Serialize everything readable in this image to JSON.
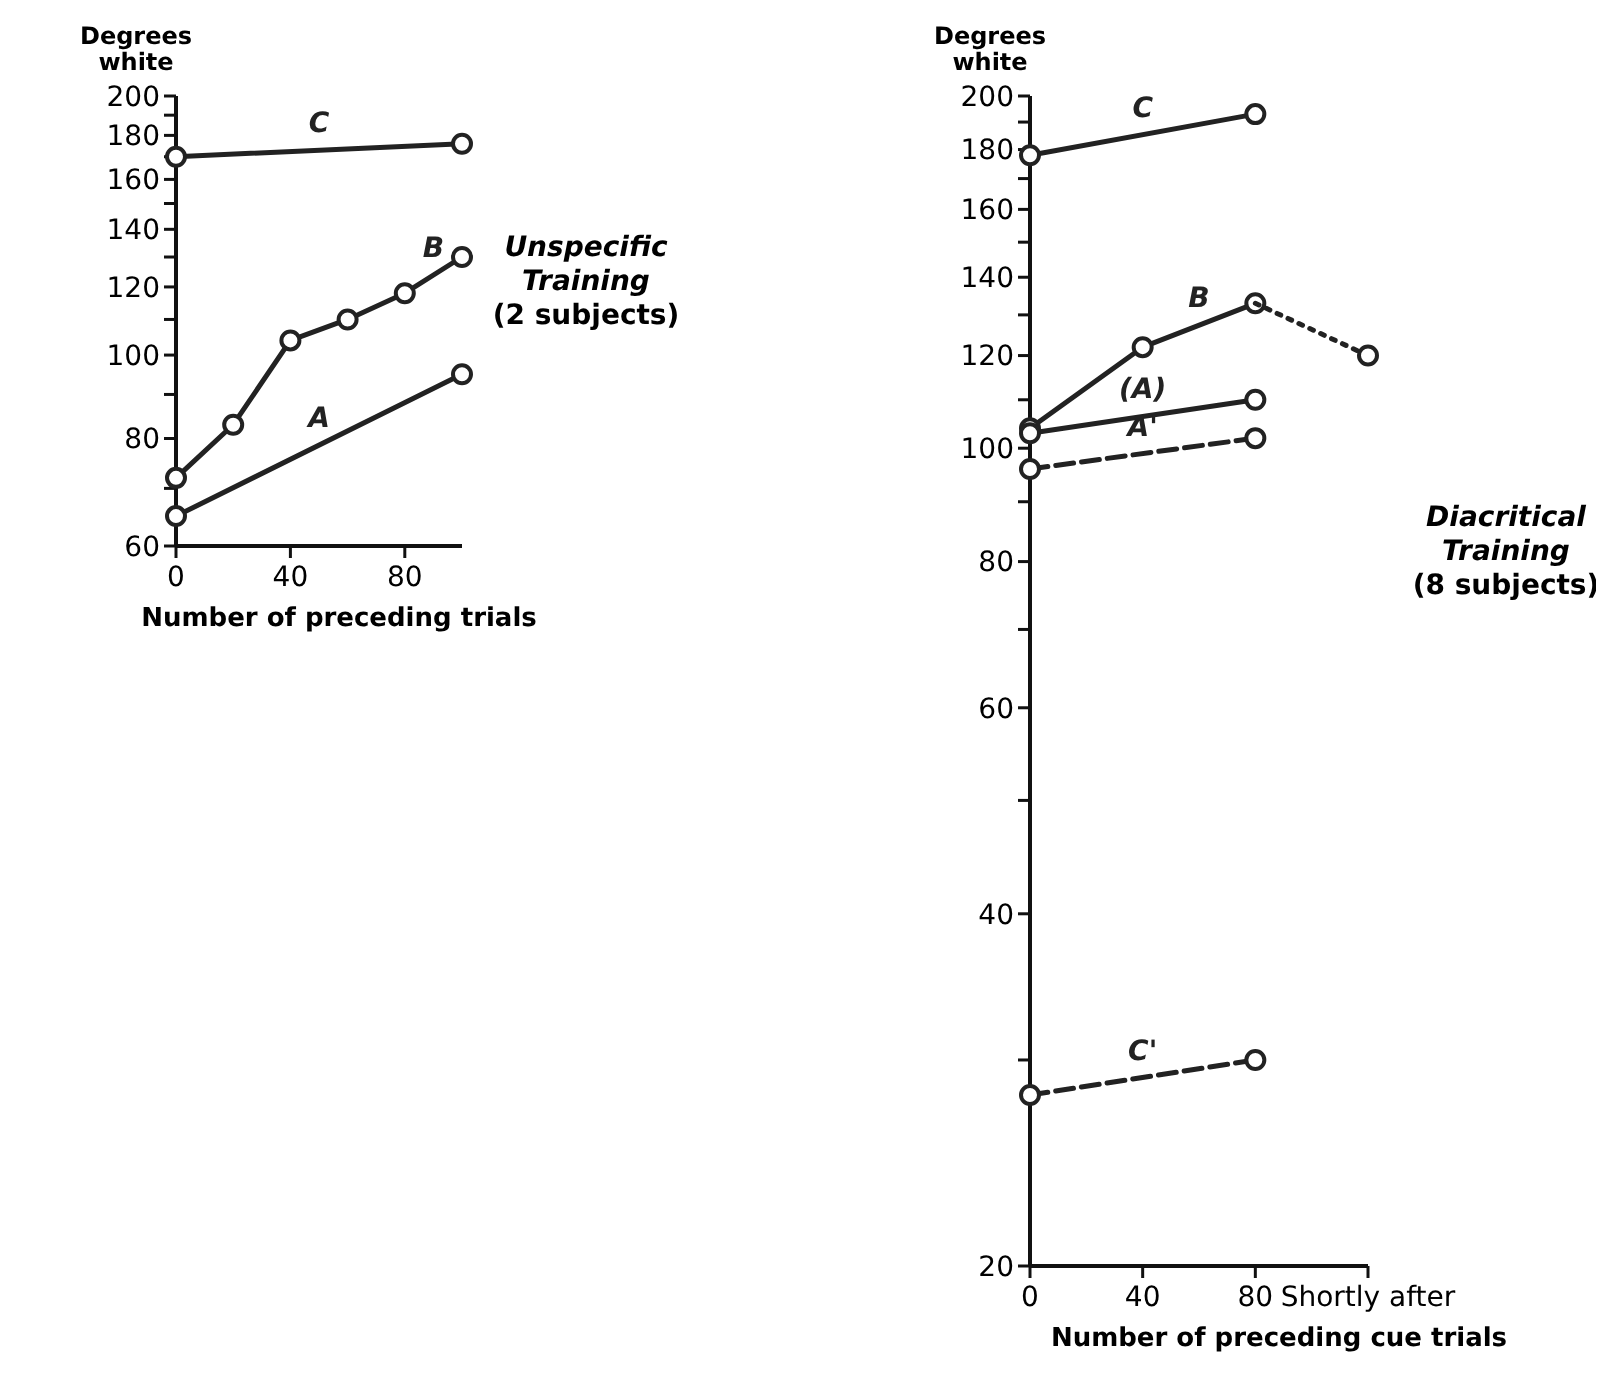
{
  "chart_data": [
    {
      "type": "line",
      "ylabel": "Degrees\nwhite",
      "xlabel": "Number of preceding trials",
      "log": "y",
      "xlim": [
        0,
        100
      ],
      "xticks": [
        0,
        40,
        80
      ],
      "ylim": [
        60,
        200
      ],
      "yticks": [
        60,
        {
          "value": 70,
          "label": null
        },
        80,
        {
          "value": 90,
          "label": null
        },
        100,
        {
          "value": 110,
          "label": null
        },
        120,
        {
          "value": 130,
          "label": null
        },
        140,
        {
          "value": 150,
          "label": null
        },
        160,
        {
          "value": 170,
          "label": null
        },
        180,
        {
          "value": 190,
          "label": null
        },
        200
      ],
      "marker": "circle",
      "grid": false,
      "series": [
        {
          "name": "C",
          "color": "#222222",
          "x": [
            0,
            100
          ],
          "values": [
            170,
            176
          ]
        },
        {
          "name": "B",
          "color": "#222222",
          "x": [
            0,
            20,
            40,
            60,
            80,
            100
          ],
          "values": [
            72,
            83,
            104,
            110,
            118,
            130
          ]
        },
        {
          "name": "A",
          "color": "#222222",
          "x": [
            0,
            100
          ],
          "values": [
            65,
            95
          ]
        }
      ],
      "annotations": [
        "Unspecific\nTraining\n(2 subjects)"
      ]
    },
    {
      "type": "line",
      "ylabel": "Degrees\nwhite",
      "xlabel": "Number of preceding cue trials",
      "log": "y",
      "xlim": [
        0,
        120
      ],
      "xticks": [
        0,
        40,
        80,
        {
          "value": 120,
          "label": "Shortly after"
        }
      ],
      "ylim": [
        20,
        200
      ],
      "yticks": [
        20,
        {
          "value": 30,
          "label": null
        },
        40,
        {
          "value": 50,
          "label": null
        },
        60,
        {
          "value": 70,
          "label": null
        },
        80,
        {
          "value": 90,
          "label": null
        },
        100,
        {
          "value": 110,
          "label": null
        },
        120,
        {
          "value": 130,
          "label": null
        },
        140,
        {
          "value": 150,
          "label": null
        },
        160,
        {
          "value": 170,
          "label": null
        },
        180,
        {
          "value": 190,
          "label": null
        },
        200
      ],
      "marker": "circle",
      "grid": false,
      "series": [
        {
          "name": "C",
          "color": "#222222",
          "x": [
            0,
            80
          ],
          "values": [
            178,
            193
          ]
        },
        {
          "name": "B",
          "color": "#222222",
          "x": [
            0,
            40,
            80
          ],
          "values": [
            104,
            122,
            133
          ]
        },
        {
          "color": "#222222",
          "x": [
            80,
            120
          ],
          "values": [
            133,
            120
          ],
          "line_style": "dotted"
        },
        {
          "name": "(A)",
          "color": "#222222",
          "x": [
            0,
            80
          ],
          "values": [
            103,
            110
          ]
        },
        {
          "name": "A'",
          "color": "#222222",
          "x": [
            0,
            80
          ],
          "values": [
            96,
            102
          ],
          "line_style": "dashed"
        },
        {
          "name": "C'",
          "color": "#222222",
          "x": [
            0,
            80
          ],
          "values": [
            28,
            30
          ],
          "line_style": "dashed"
        }
      ],
      "annotations": [
        "Diacritical\nTraining\n(8 subjects)"
      ]
    }
  ]
}
